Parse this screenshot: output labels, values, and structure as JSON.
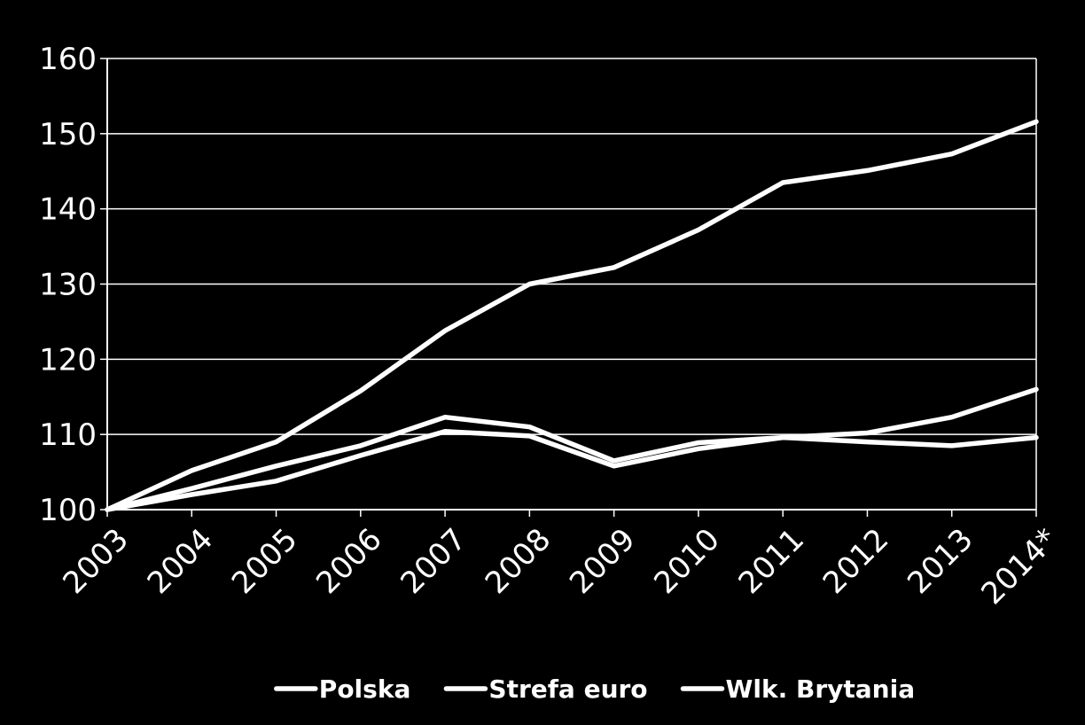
{
  "chart_data": {
    "type": "line",
    "title": "",
    "xlabel": "",
    "ylabel": "",
    "categories": [
      "2003",
      "2004",
      "2005",
      "2006",
      "2007",
      "2008",
      "2009",
      "2010",
      "2011",
      "2012",
      "2013",
      "2014*"
    ],
    "ylim": [
      100,
      160
    ],
    "yticks": [
      100,
      110,
      120,
      130,
      140,
      150,
      160
    ],
    "grid": true,
    "legend_position": "bottom",
    "line_color": "#ffffff",
    "background": "#000000",
    "series": [
      {
        "name": "Polska",
        "values": [
          100,
          105.2,
          109,
          115.8,
          123.8,
          130,
          132.2,
          137.2,
          143.5,
          145.1,
          147.3,
          151.6
        ]
      },
      {
        "name": "Strefa euro",
        "values": [
          100,
          102,
          103.8,
          107.2,
          110.4,
          109.8,
          105.8,
          108.1,
          109.6,
          109.0,
          108.5,
          109.6
        ]
      },
      {
        "name": "Wlk. Brytania",
        "values": [
          100,
          102.8,
          105.8,
          108.5,
          112.3,
          111.0,
          106.5,
          108.9,
          109.6,
          110.2,
          112.3,
          116.0
        ]
      }
    ]
  }
}
